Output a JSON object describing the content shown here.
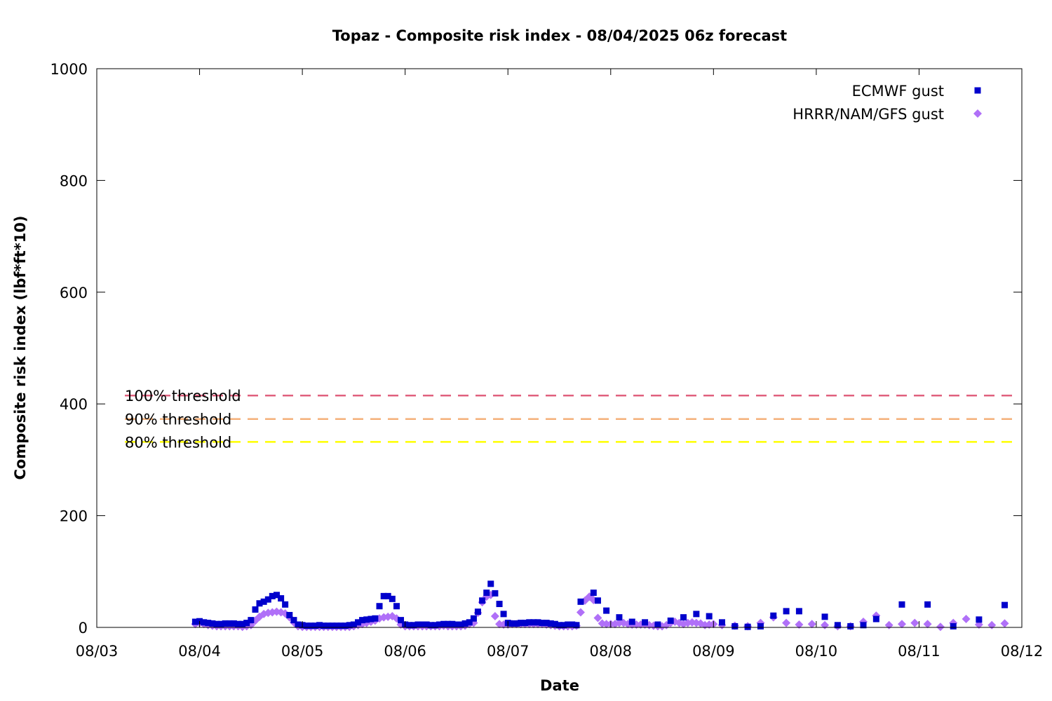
{
  "chart_data": {
    "type": "scatter",
    "title": "Topaz - Composite risk index - 08/04/2025 06z forecast",
    "xlabel": "Date",
    "ylabel": "Composite risk index (lbf*ft*10)",
    "x_range": [
      "08/03",
      "08/12"
    ],
    "xlim": [
      0,
      9
    ],
    "x_unit": "days",
    "ylim": [
      0,
      1000
    ],
    "x_ticks": [
      "08/03",
      "08/04",
      "08/05",
      "08/06",
      "08/07",
      "08/08",
      "08/09",
      "08/10",
      "08/11",
      "08/12"
    ],
    "y_ticks": [
      "0",
      "200",
      "400",
      "600",
      "800",
      "1000"
    ],
    "grid": false,
    "legend_position": "top-right",
    "thresholds": [
      {
        "label": "100% threshold",
        "value": 415,
        "color": "#e0607e"
      },
      {
        "label": "90% threshold",
        "value": 373,
        "color": "#f4b07a"
      },
      {
        "label": "80% threshold",
        "value": 332,
        "color": "#ffff00"
      }
    ],
    "series": [
      {
        "name": "ECMWF gust",
        "marker": "square",
        "color": "#0000cc",
        "points": [
          [
            0.958,
            10
          ],
          [
            1.0,
            11
          ],
          [
            1.042,
            9
          ],
          [
            1.083,
            8
          ],
          [
            1.125,
            7
          ],
          [
            1.167,
            6
          ],
          [
            1.208,
            6
          ],
          [
            1.25,
            7
          ],
          [
            1.292,
            7
          ],
          [
            1.333,
            7
          ],
          [
            1.375,
            6
          ],
          [
            1.417,
            6
          ],
          [
            1.458,
            8
          ],
          [
            1.5,
            13
          ],
          [
            1.542,
            32
          ],
          [
            1.583,
            43
          ],
          [
            1.625,
            46
          ],
          [
            1.667,
            50
          ],
          [
            1.708,
            56
          ],
          [
            1.75,
            58
          ],
          [
            1.792,
            52
          ],
          [
            1.833,
            41
          ],
          [
            1.875,
            22
          ],
          [
            1.917,
            13
          ],
          [
            1.958,
            5
          ],
          [
            2.0,
            4
          ],
          [
            2.042,
            3
          ],
          [
            2.083,
            3
          ],
          [
            2.125,
            3
          ],
          [
            2.167,
            4
          ],
          [
            2.208,
            3
          ],
          [
            2.25,
            3
          ],
          [
            2.292,
            3
          ],
          [
            2.333,
            3
          ],
          [
            2.375,
            3
          ],
          [
            2.417,
            3
          ],
          [
            2.458,
            4
          ],
          [
            2.5,
            5
          ],
          [
            2.542,
            9
          ],
          [
            2.583,
            13
          ],
          [
            2.625,
            14
          ],
          [
            2.667,
            15
          ],
          [
            2.708,
            16
          ],
          [
            2.75,
            38
          ],
          [
            2.792,
            56
          ],
          [
            2.833,
            56
          ],
          [
            2.875,
            51
          ],
          [
            2.917,
            38
          ],
          [
            2.958,
            13
          ],
          [
            3.0,
            5
          ],
          [
            3.042,
            4
          ],
          [
            3.083,
            4
          ],
          [
            3.125,
            5
          ],
          [
            3.167,
            5
          ],
          [
            3.208,
            5
          ],
          [
            3.25,
            4
          ],
          [
            3.292,
            4
          ],
          [
            3.333,
            5
          ],
          [
            3.375,
            6
          ],
          [
            3.417,
            6
          ],
          [
            3.458,
            6
          ],
          [
            3.5,
            5
          ],
          [
            3.542,
            5
          ],
          [
            3.583,
            7
          ],
          [
            3.625,
            9
          ],
          [
            3.667,
            16
          ],
          [
            3.708,
            28
          ],
          [
            3.75,
            48
          ],
          [
            3.792,
            62
          ],
          [
            3.833,
            78
          ],
          [
            3.875,
            61
          ],
          [
            3.917,
            42
          ],
          [
            3.958,
            24
          ],
          [
            4.0,
            8
          ],
          [
            4.042,
            7
          ],
          [
            4.083,
            7
          ],
          [
            4.125,
            8
          ],
          [
            4.167,
            8
          ],
          [
            4.208,
            9
          ],
          [
            4.25,
            9
          ],
          [
            4.292,
            9
          ],
          [
            4.333,
            8
          ],
          [
            4.375,
            8
          ],
          [
            4.417,
            7
          ],
          [
            4.458,
            6
          ],
          [
            4.5,
            4
          ],
          [
            4.542,
            4
          ],
          [
            4.583,
            5
          ],
          [
            4.625,
            5
          ],
          [
            4.667,
            4
          ],
          [
            4.708,
            46
          ],
          [
            4.833,
            62
          ],
          [
            4.875,
            48
          ],
          [
            4.958,
            30
          ],
          [
            5.083,
            18
          ],
          [
            5.208,
            10
          ],
          [
            5.333,
            9
          ],
          [
            5.458,
            5
          ],
          [
            5.583,
            12
          ],
          [
            5.708,
            18
          ],
          [
            5.833,
            24
          ],
          [
            5.958,
            20
          ],
          [
            6.083,
            9
          ],
          [
            6.208,
            2
          ],
          [
            6.333,
            1
          ],
          [
            6.458,
            2
          ],
          [
            6.583,
            21
          ],
          [
            6.708,
            29
          ],
          [
            6.833,
            29
          ],
          [
            7.083,
            19
          ],
          [
            7.208,
            4
          ],
          [
            7.333,
            2
          ],
          [
            7.458,
            4
          ],
          [
            7.583,
            15
          ],
          [
            7.833,
            41
          ],
          [
            8.083,
            41
          ],
          [
            8.333,
            2
          ],
          [
            8.583,
            14
          ],
          [
            8.833,
            40
          ]
        ]
      },
      {
        "name": "HRRR/NAM/GFS gust",
        "marker": "diamond",
        "color": "#b070f8",
        "points": [
          [
            0.958,
            6
          ],
          [
            1.0,
            8
          ],
          [
            1.042,
            6
          ],
          [
            1.083,
            4
          ],
          [
            1.125,
            3
          ],
          [
            1.167,
            2
          ],
          [
            1.208,
            2
          ],
          [
            1.25,
            2
          ],
          [
            1.292,
            2
          ],
          [
            1.333,
            2
          ],
          [
            1.375,
            2
          ],
          [
            1.417,
            1
          ],
          [
            1.458,
            2
          ],
          [
            1.5,
            4
          ],
          [
            1.542,
            12
          ],
          [
            1.583,
            19
          ],
          [
            1.625,
            24
          ],
          [
            1.667,
            26
          ],
          [
            1.708,
            27
          ],
          [
            1.75,
            28
          ],
          [
            1.792,
            27
          ],
          [
            1.833,
            25
          ],
          [
            1.875,
            18
          ],
          [
            1.917,
            9
          ],
          [
            1.958,
            2
          ],
          [
            2.0,
            1
          ],
          [
            2.042,
            1
          ],
          [
            2.083,
            1
          ],
          [
            2.125,
            1
          ],
          [
            2.167,
            1
          ],
          [
            2.208,
            1
          ],
          [
            2.25,
            1
          ],
          [
            2.292,
            1
          ],
          [
            2.333,
            1
          ],
          [
            2.375,
            1
          ],
          [
            2.417,
            1
          ],
          [
            2.458,
            1
          ],
          [
            2.5,
            2
          ],
          [
            2.542,
            4
          ],
          [
            2.583,
            6
          ],
          [
            2.625,
            8
          ],
          [
            2.667,
            10
          ],
          [
            2.708,
            12
          ],
          [
            2.75,
            16
          ],
          [
            2.792,
            18
          ],
          [
            2.833,
            19
          ],
          [
            2.875,
            20
          ],
          [
            2.917,
            16
          ],
          [
            2.958,
            5
          ],
          [
            3.0,
            2
          ],
          [
            3.042,
            2
          ],
          [
            3.083,
            2
          ],
          [
            3.125,
            2
          ],
          [
            3.167,
            2
          ],
          [
            3.208,
            2
          ],
          [
            3.25,
            2
          ],
          [
            3.292,
            2
          ],
          [
            3.333,
            2
          ],
          [
            3.375,
            3
          ],
          [
            3.417,
            2
          ],
          [
            3.458,
            2
          ],
          [
            3.5,
            2
          ],
          [
            3.542,
            2
          ],
          [
            3.583,
            3
          ],
          [
            3.625,
            6
          ],
          [
            3.667,
            8
          ],
          [
            3.708,
            26
          ],
          [
            3.75,
            45
          ],
          [
            3.792,
            55
          ],
          [
            3.833,
            58
          ],
          [
            3.875,
            20
          ],
          [
            3.917,
            6
          ],
          [
            3.958,
            5
          ],
          [
            4.0,
            5
          ],
          [
            4.042,
            6
          ],
          [
            4.083,
            6
          ],
          [
            4.125,
            6
          ],
          [
            4.167,
            6
          ],
          [
            4.208,
            6
          ],
          [
            4.25,
            6
          ],
          [
            4.292,
            6
          ],
          [
            4.333,
            6
          ],
          [
            4.375,
            5
          ],
          [
            4.417,
            4
          ],
          [
            4.458,
            3
          ],
          [
            4.5,
            2
          ],
          [
            4.542,
            2
          ],
          [
            4.583,
            2
          ],
          [
            4.625,
            2
          ],
          [
            4.667,
            3
          ],
          [
            4.708,
            27
          ],
          [
            4.75,
            48
          ],
          [
            4.792,
            55
          ],
          [
            4.833,
            49
          ],
          [
            4.875,
            17
          ],
          [
            4.917,
            7
          ],
          [
            4.958,
            6
          ],
          [
            5.0,
            6
          ],
          [
            5.042,
            6
          ],
          [
            5.083,
            8
          ],
          [
            5.125,
            8
          ],
          [
            5.167,
            6
          ],
          [
            5.208,
            5
          ],
          [
            5.25,
            5
          ],
          [
            5.292,
            5
          ],
          [
            5.333,
            5
          ],
          [
            5.375,
            4
          ],
          [
            5.417,
            3
          ],
          [
            5.458,
            2
          ],
          [
            5.5,
            2
          ],
          [
            5.542,
            4
          ],
          [
            5.583,
            8
          ],
          [
            5.625,
            10
          ],
          [
            5.667,
            8
          ],
          [
            5.708,
            6
          ],
          [
            5.75,
            8
          ],
          [
            5.792,
            9
          ],
          [
            5.833,
            8
          ],
          [
            5.875,
            7
          ],
          [
            5.917,
            4
          ],
          [
            5.958,
            5
          ],
          [
            6.0,
            6
          ],
          [
            6.083,
            4
          ],
          [
            6.208,
            3
          ],
          [
            6.333,
            2
          ],
          [
            6.458,
            8
          ],
          [
            6.583,
            18
          ],
          [
            6.708,
            8
          ],
          [
            6.833,
            5
          ],
          [
            6.958,
            6
          ],
          [
            7.083,
            4
          ],
          [
            7.208,
            2
          ],
          [
            7.333,
            2
          ],
          [
            7.458,
            10
          ],
          [
            7.583,
            21
          ],
          [
            7.708,
            4
          ],
          [
            7.833,
            6
          ],
          [
            7.958,
            8
          ],
          [
            8.083,
            6
          ],
          [
            8.208,
            1
          ],
          [
            8.333,
            8
          ],
          [
            8.458,
            15
          ],
          [
            8.583,
            5
          ],
          [
            8.708,
            4
          ],
          [
            8.833,
            7
          ]
        ]
      }
    ]
  }
}
